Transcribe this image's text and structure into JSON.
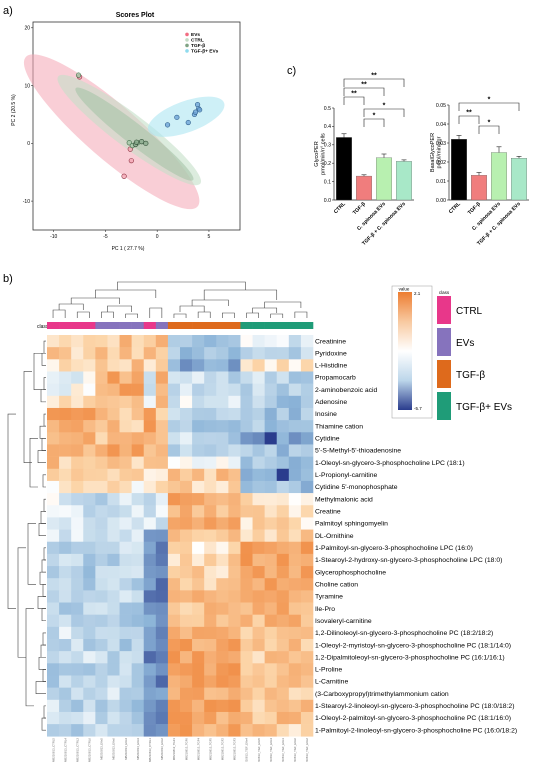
{
  "panel_labels": {
    "a": "a)",
    "b": "b)",
    "c": "c)"
  },
  "chart_data": [
    {
      "type": "scatter",
      "title": "Scores Plot",
      "xlabel": "PC 1 ( 27.7 %)",
      "ylabel": "PC 2 (20.5 %)",
      "xlim": [
        -12,
        8
      ],
      "ylim": [
        -15,
        21
      ],
      "xticks": [
        "-10",
        "-5",
        "0",
        "5"
      ],
      "yticks": [
        "20",
        "10",
        "0",
        "-10"
      ],
      "legend_position": "top-right",
      "series": [
        {
          "name": "EVs",
          "color": "#f4a6b4",
          "points": [
            [
              -7.5,
              11.5
            ],
            [
              -3.2,
              -5.7
            ],
            [
              -2.6,
              -1.0
            ],
            [
              -2.5,
              -3.0
            ]
          ]
        },
        {
          "name": "CTRL",
          "color": "#c5dfc8",
          "points": [
            [
              -7.6,
              11.8
            ],
            [
              -2.7,
              0.1
            ],
            [
              -2.4,
              -0.4
            ],
            [
              -1.9,
              0.1
            ]
          ]
        },
        {
          "name": "TGF-β",
          "color": "#a7c4a9",
          "points": [
            [
              -2.1,
              -0.2
            ],
            [
              -2.0,
              0.2
            ],
            [
              -1.5,
              0.3
            ],
            [
              -1.1,
              0.0
            ]
          ]
        },
        {
          "name": "TGF-β+ EVs",
          "color": "#aee6f2",
          "points": [
            [
              1.0,
              3.2
            ],
            [
              1.9,
              4.5
            ],
            [
              3.0,
              3.6
            ],
            [
              3.6,
              5.0
            ],
            [
              3.9,
              6.7
            ],
            [
              4.0,
              6.0
            ],
            [
              3.7,
              5.4
            ],
            [
              4.1,
              5.8
            ]
          ]
        }
      ]
    },
    {
      "type": "bar",
      "ylabel": "GlycoPER\npmol/min/n° cells",
      "ylim": [
        0,
        0.5
      ],
      "yticks": [
        "0.5",
        "0.4",
        "0.3",
        "0.2",
        "0.1",
        "0.0"
      ],
      "categories": [
        "CTRL",
        "TGF-β",
        "C. spinosa EVs",
        "TGF-β + C. spinosa EVs"
      ],
      "values": [
        0.34,
        0.13,
        0.23,
        0.21
      ],
      "errors": [
        0.02,
        0.007,
        0.02,
        0.008
      ],
      "colors": [
        "#000000",
        "#f07d7d",
        "#b8f0b0",
        "#a8e8c8"
      ],
      "significance": [
        {
          "pair": [
            0,
            1
          ],
          "label": "**"
        },
        {
          "pair": [
            0,
            2
          ],
          "label": "**"
        },
        {
          "pair": [
            0,
            3
          ],
          "label": "**"
        },
        {
          "pair": [
            1,
            2
          ],
          "label": "*"
        },
        {
          "pair": [
            1,
            3
          ],
          "label": "*"
        }
      ]
    },
    {
      "type": "bar",
      "ylabel": "BasalGlycoPER\npmol/min/µgr",
      "ylim": [
        0,
        0.05
      ],
      "yticks": [
        "0.05",
        "0.04",
        "0.03",
        "0.02",
        "0.01",
        "0.00"
      ],
      "categories": [
        "CTRL",
        "TGF-β",
        "C. spinosa EVs",
        "TGF-β + C. spinosa EVs"
      ],
      "values": [
        0.032,
        0.013,
        0.025,
        0.022
      ],
      "errors": [
        0.002,
        0.0015,
        0.003,
        0.001
      ],
      "colors": [
        "#000000",
        "#f07d7d",
        "#b8f0b0",
        "#a8e8c8"
      ],
      "significance": [
        {
          "pair": [
            0,
            1
          ],
          "label": "**"
        },
        {
          "pair": [
            1,
            2
          ],
          "label": "*"
        },
        {
          "pair": [
            0,
            3
          ],
          "label": "*"
        }
      ]
    },
    {
      "type": "heatmap",
      "colorbar": {
        "title": "value",
        "max": "2.1",
        "min": "-5.7",
        "colors": [
          "#ed7d31",
          "#f8c9a0",
          "#ffffff",
          "#bcd6ea",
          "#2a3c8d"
        ]
      },
      "class_label": "class",
      "class_legend_title": "class",
      "classes": [
        {
          "name": "CTRL",
          "color": "#e8378a"
        },
        {
          "name": "EVs",
          "color": "#8673bd"
        },
        {
          "name": "TGF-β",
          "color": "#de6a1c"
        },
        {
          "name": "TGF-β+ EVs",
          "color": "#1f9c78"
        }
      ],
      "column_classes": [
        0,
        0,
        0,
        0,
        1,
        1,
        1,
        1,
        0,
        1,
        2,
        2,
        2,
        2,
        2,
        2,
        3,
        3,
        3,
        3,
        3,
        3
      ],
      "columns": [
        "MB210813_CTRL5",
        "MB210813_CTRL4",
        "MB210813_CTRL3",
        "MB210813_CTRL6",
        "MB210813_EVs5",
        "MB210813_EVs6",
        "MB210813_EVs4",
        "MB210813_EVs3",
        "MB210813_CTRL1",
        "MB210813_EVs2",
        "MB210813_TGF1",
        "MB210813_TGF6",
        "MB210813_TGF4",
        "MB210813_TGF5",
        "MB210813_TGF2",
        "MB210813_TGF3",
        "MB210813_TGF_EVs4",
        "MB210813_TGF_EVs5",
        "MB210813_TGF_EVs3",
        "MB210813_TGF_EVs1",
        "MB210813_TGF_EVs6",
        "MB210813_TGF_EVs2"
      ],
      "rows": [
        "Creatinine",
        "Pyridoxine",
        "L-Histidine",
        "Propamocarb",
        "2-aminobenzoic acid",
        "Adenosine",
        "Inosine",
        "Thiamine cation",
        "Cytidine",
        "5'-S-Methyl-5'-thioadenosine",
        "1-Oleoyl-sn-glycero-3-phosphocholine LPC (18:1)",
        "L-Propionyl-carnitine",
        "Cytidine 5'-monophosphate",
        "Methylmalonic acid",
        "Creatine",
        "Palmitoyl sphingomyelin",
        "DL-Ornithine",
        "1-Palmitoyl-sn-glycero-3-phosphocholine LPC (16:0)",
        "1-Stearoyl-2-hydroxy-sn-glycero-3-phosphocholine LPC (18:0)",
        "Glycerophosphocholine",
        "Choline cation",
        "Tyramine",
        "Ile-Pro",
        "Isovaleryl-carnitine",
        "1,2-Dilinoleoyl-sn-glycero-3-phosphocholine PC (18:2/18:2)",
        "1-Oleoyl-2-myristoyl-sn-glycero-3-phosphocholine PC (18:1/14:0)",
        "1,2-Dipalmitoleoyl-sn-glycero-3-phosphocholine PC (16:1/16:1)",
        "L-Proline",
        "L-Carnitine",
        "(3-Carboxypropyl)trimethylammonium cation",
        "1-Stearoyl-2-linoleoyl-sn-glycero-3-phosphocholine PC (18:0/18:2)",
        "1-Oleoyl-2-palmitoyl-sn-glycero-3-phosphocholine PC (18:1/16:0)",
        "1-Palmitoyl-2-linoleoyl-sn-glycero-3-phosphocholine PC (16:0/18:2)"
      ]
    }
  ]
}
